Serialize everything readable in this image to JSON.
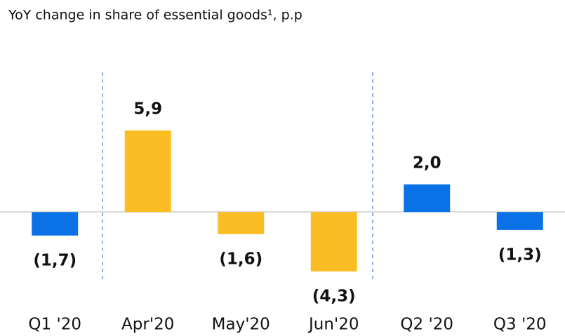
{
  "chart_data": {
    "type": "bar",
    "title": "YoY change in share of essential goods¹, p.p",
    "categories": [
      "Q1 '20",
      "Apr'20",
      "May'20",
      "Jun'20",
      "Q2 '20",
      "Q3 '20"
    ],
    "values": [
      -1.7,
      5.9,
      -1.6,
      -4.3,
      2.0,
      -1.3
    ],
    "value_labels": [
      "(1,7)",
      "5,9",
      "(1,6)",
      "(4,3)",
      "2,0",
      "(1,3)"
    ],
    "colors": [
      "#0a72e6",
      "#fbbd24",
      "#fbbd24",
      "#fbbd24",
      "#0a72e6",
      "#0a72e6"
    ]
  }
}
